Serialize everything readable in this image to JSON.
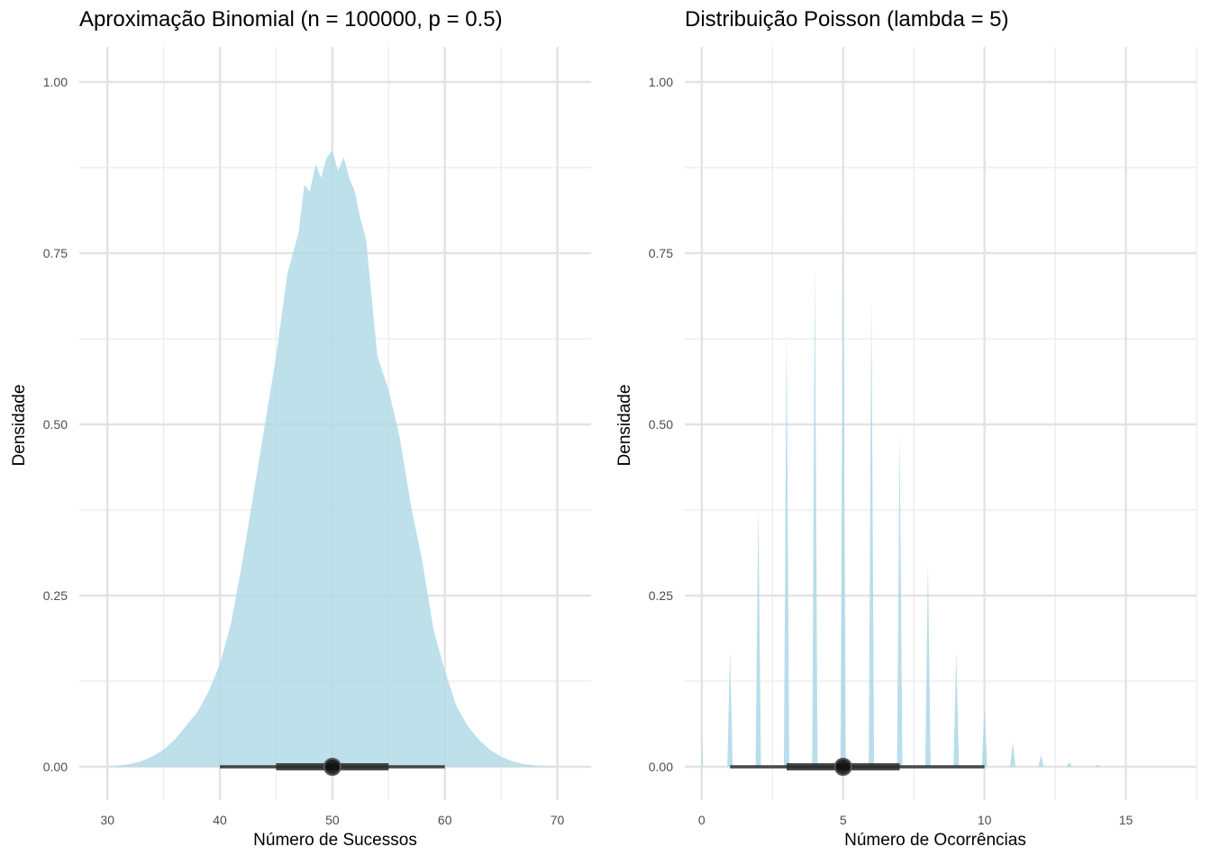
{
  "chart_data": [
    {
      "type": "area",
      "title": "Aproximação Binomial (n = 100000, p = 0.5)",
      "xlabel": "Número de Sucessos",
      "ylabel": "Densidade",
      "xlim": [
        27.5,
        73
      ],
      "ylim": [
        0,
        1
      ],
      "x_ticks": [
        30,
        40,
        50,
        60,
        70
      ],
      "y_ticks": [
        "0.00",
        "0.25",
        "0.50",
        "0.75",
        "1.00"
      ],
      "grid": true,
      "fill_color": "#add8e6",
      "series": [
        {
          "x": [
            30,
            31,
            32,
            33,
            34,
            35,
            36,
            37,
            38,
            39,
            40,
            41,
            42,
            43,
            44,
            45,
            46,
            47,
            47.5,
            48,
            48.5,
            49,
            49.5,
            50,
            50.5,
            51,
            51.5,
            52,
            52.5,
            53,
            54,
            55,
            56,
            57,
            58,
            59,
            60,
            61,
            62,
            63,
            64,
            65,
            66,
            67,
            68,
            69,
            70
          ],
          "y": [
            0.0,
            0.002,
            0.004,
            0.008,
            0.015,
            0.025,
            0.04,
            0.06,
            0.08,
            0.11,
            0.15,
            0.21,
            0.3,
            0.4,
            0.5,
            0.6,
            0.72,
            0.78,
            0.85,
            0.84,
            0.88,
            0.86,
            0.89,
            0.9,
            0.87,
            0.89,
            0.86,
            0.84,
            0.8,
            0.77,
            0.6,
            0.55,
            0.48,
            0.38,
            0.3,
            0.2,
            0.14,
            0.09,
            0.06,
            0.04,
            0.025,
            0.015,
            0.008,
            0.004,
            0.002,
            0.001,
            0.0
          ]
        }
      ],
      "interval": {
        "point": 50,
        "inner": [
          45,
          55
        ],
        "outer": [
          40,
          60
        ]
      }
    },
    {
      "type": "area",
      "title": "Distribuição Poisson (lambda = 5)",
      "xlabel": "Número de Ocorrências",
      "ylabel": "Densidade",
      "xlim": [
        -0.6,
        17.5
      ],
      "ylim": [
        0,
        1
      ],
      "x_ticks": [
        0,
        5,
        10,
        15
      ],
      "y_ticks": [
        "0.00",
        "0.25",
        "0.50",
        "0.75",
        "1.00"
      ],
      "grid": true,
      "fill_color": "#add8e6",
      "spikes": [
        {
          "x": 0,
          "y": 0.05
        },
        {
          "x": 1,
          "y": 0.17
        },
        {
          "x": 2,
          "y": 0.38
        },
        {
          "x": 3,
          "y": 0.64
        },
        {
          "x": 4,
          "y": 0.74
        },
        {
          "x": 5,
          "y": 0.8
        },
        {
          "x": 6,
          "y": 0.69
        },
        {
          "x": 7,
          "y": 0.49
        },
        {
          "x": 8,
          "y": 0.3
        },
        {
          "x": 9,
          "y": 0.17
        },
        {
          "x": 10,
          "y": 0.085
        },
        {
          "x": 11,
          "y": 0.036
        },
        {
          "x": 12,
          "y": 0.017
        },
        {
          "x": 13,
          "y": 0.007
        },
        {
          "x": 14,
          "y": 0.003
        }
      ],
      "interval": {
        "point": 5,
        "inner": [
          3,
          7
        ],
        "outer": [
          1,
          10
        ]
      }
    }
  ]
}
